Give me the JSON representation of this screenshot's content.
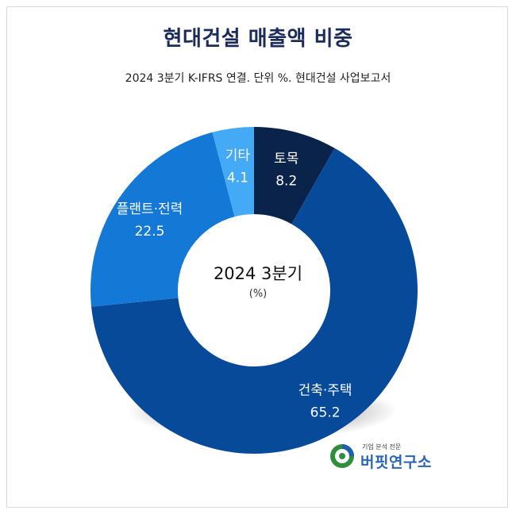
{
  "title": "현대건설 매출액 비중",
  "subtitle": "2024 3분기 K-IFRS 연결. 단위 %. 현대건설 사업보고서",
  "center": {
    "label": "2024 3분기",
    "unit": "(%)"
  },
  "chart_data": {
    "type": "pie",
    "variant": "donut",
    "slices": [
      {
        "label": "토목",
        "value": 8.2,
        "value_label": "8.2",
        "color": "#0a234a"
      },
      {
        "label": "건축·주택",
        "value": 65.2,
        "value_label": "65.2",
        "color": "#074a9a"
      },
      {
        "label": "플랜트·전력",
        "value": 22.5,
        "value_label": "22.5",
        "color": "#1378d6"
      },
      {
        "label": "기타",
        "value": 4.1,
        "value_label": "4.1",
        "color": "#44aaf5"
      }
    ],
    "start_angle_deg": 0,
    "direction": "clockwise"
  },
  "logo": {
    "tagline": "기업 분석 전문",
    "name": "버핏연구소"
  }
}
